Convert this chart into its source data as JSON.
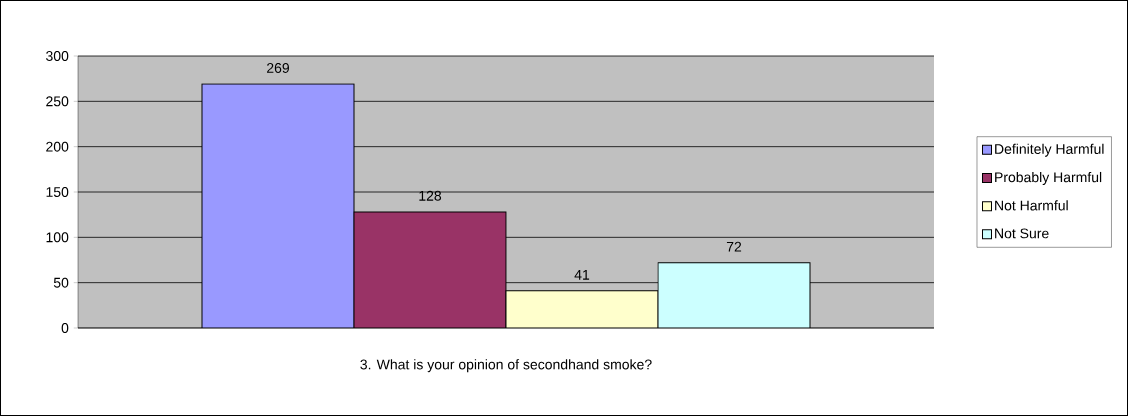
{
  "chart_data": {
    "type": "bar",
    "categories": [
      "3. What is your opinion of secondhand smoke?"
    ],
    "series": [
      {
        "name": "Definitely Harmful",
        "color": "#9999ff",
        "values": [
          269
        ]
      },
      {
        "name": "Probably Harmful",
        "color": "#993366",
        "values": [
          128
        ]
      },
      {
        "name": "Not Harmful",
        "color": "#ffffcc",
        "values": [
          41
        ]
      },
      {
        "name": "Not Sure",
        "color": "#ccffff",
        "values": [
          72
        ]
      }
    ],
    "ylim": [
      0,
      300
    ],
    "yticks": [
      0,
      50,
      100,
      150,
      200,
      250,
      300
    ],
    "grid": "y",
    "legend": "right",
    "data_labels": true
  }
}
